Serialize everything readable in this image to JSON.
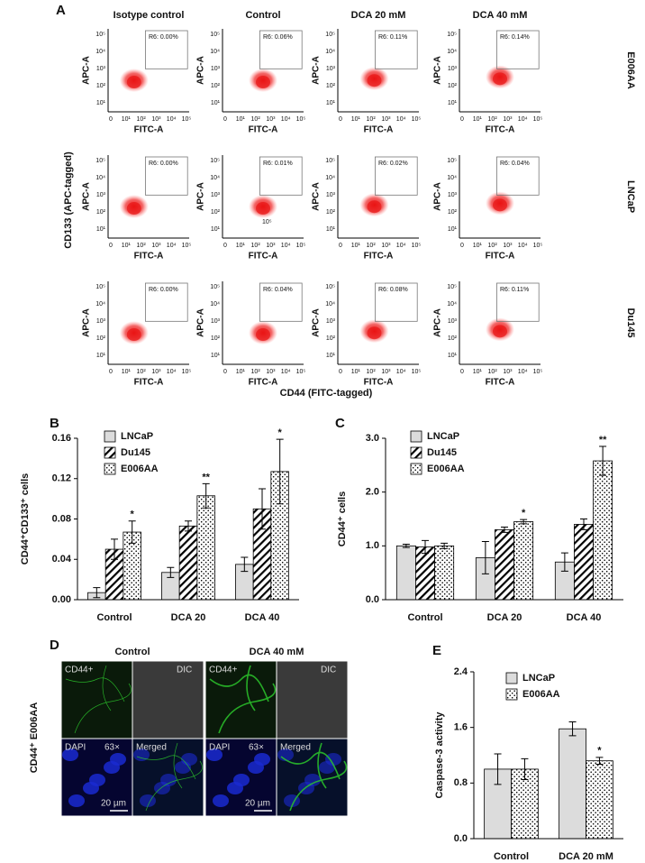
{
  "flow": {
    "label": "A",
    "columns": [
      "Isotype control",
      "Control",
      "DCA 20 mM",
      "DCA 40 mM"
    ],
    "rows": [
      {
        "name": "E006AA",
        "gates": [
          "R6: 0.00%",
          "R6: 0.06%",
          "R6: 0.11%",
          "R6: 0.14%"
        ]
      },
      {
        "name": "LNCaP",
        "gates": [
          "R6: 0.00%",
          "R6: 0.01%",
          "R6: 0.02%",
          "R6: 0.04%"
        ]
      },
      {
        "name": "Du145",
        "gates": [
          "R6: 0.00%",
          "R6: 0.04%",
          "R6: 0.08%",
          "R6: 0.11%"
        ]
      }
    ],
    "y_axis_label": "CD133 (APC-tagged)",
    "x_axis_label": "CD44 (FITC-tagged)",
    "plot_x_label": "FITC-A",
    "plot_y_label": "APC-A",
    "xticks": [
      "0",
      "10¹",
      "10²",
      "10³",
      "10⁴",
      "10⁵"
    ],
    "yticks": [
      "10¹",
      "10²",
      "10³",
      "10⁴",
      "10⁵"
    ],
    "stray_label": "10⁵"
  },
  "chart_data": [
    {
      "type": "bar",
      "panel": "B",
      "ylabel": "CD44⁺CD133⁺ cells",
      "categories": [
        "Control",
        "DCA 20",
        "DCA 40"
      ],
      "series": [
        {
          "name": "LNCaP",
          "pattern": "solid",
          "color": "#dcdcdc",
          "values": [
            0.007,
            0.027,
            0.035
          ],
          "errors": [
            0.005,
            0.005,
            0.007
          ]
        },
        {
          "name": "Du145",
          "pattern": "hatch",
          "color": "#000000",
          "values": [
            0.05,
            0.073,
            0.09
          ],
          "errors": [
            0.01,
            0.005,
            0.02
          ]
        },
        {
          "name": "E006AA",
          "pattern": "dots",
          "color": "#000000",
          "values": [
            0.067,
            0.103,
            0.127
          ],
          "errors": [
            0.011,
            0.012,
            0.032
          ],
          "significance": [
            "*",
            "**",
            "*"
          ]
        }
      ],
      "ylim": [
        0,
        0.16
      ],
      "yticks": [
        {
          "value": 0,
          "label": "0.00"
        },
        {
          "value": 0.04,
          "label": "0.04"
        },
        {
          "value": 0.08,
          "label": "0.08"
        },
        {
          "value": 0.12,
          "label": "0.12"
        },
        {
          "value": 0.16,
          "label": "0.16"
        }
      ]
    },
    {
      "type": "bar",
      "panel": "C",
      "ylabel": "CD44⁺ cells",
      "categories": [
        "Control",
        "DCA 20",
        "DCA 40"
      ],
      "series": [
        {
          "name": "LNCaP",
          "pattern": "solid",
          "color": "#dcdcdc",
          "values": [
            1.0,
            0.78,
            0.7
          ],
          "errors": [
            0.03,
            0.3,
            0.17
          ]
        },
        {
          "name": "Du145",
          "pattern": "hatch",
          "color": "#000000",
          "values": [
            0.98,
            1.3,
            1.4
          ],
          "errors": [
            0.12,
            0.05,
            0.1
          ]
        },
        {
          "name": "E006AA",
          "pattern": "dots",
          "color": "#000000",
          "values": [
            1.0,
            1.45,
            2.58
          ],
          "errors": [
            0.05,
            0.04,
            0.27
          ],
          "significance": [
            null,
            "*",
            "**"
          ]
        }
      ],
      "ylim": [
        0,
        3
      ],
      "yticks": [
        {
          "value": 0,
          "label": "0.0"
        },
        {
          "value": 1,
          "label": "1.0"
        },
        {
          "value": 2,
          "label": "2.0"
        },
        {
          "value": 3,
          "label": "3.0"
        }
      ]
    },
    {
      "type": "bar",
      "panel": "E",
      "ylabel": "Caspase-3 activity",
      "categories": [
        "Control",
        "DCA 20 mM"
      ],
      "series": [
        {
          "name": "LNCaP",
          "pattern": "solid",
          "color": "#dcdcdc",
          "values": [
            1.0,
            1.58
          ],
          "errors": [
            0.22,
            0.1
          ]
        },
        {
          "name": "E006AA",
          "pattern": "dots",
          "color": "#000000",
          "values": [
            1.0,
            1.12
          ],
          "errors": [
            0.15,
            0.05
          ],
          "significance": [
            null,
            "*"
          ]
        }
      ],
      "ylim": [
        0,
        2.4
      ],
      "yticks": [
        {
          "value": 0,
          "label": "0.0"
        },
        {
          "value": 0.8,
          "label": "0.8"
        },
        {
          "value": 1.6,
          "label": "1.6"
        },
        {
          "value": 2.4,
          "label": "2.4"
        }
      ]
    }
  ],
  "microscopy": {
    "label": "D",
    "columns": [
      "Control",
      "DCA 40 mM"
    ],
    "row_label": "CD44⁺ E006AA",
    "quadrants": [
      "CD44+",
      "DIC",
      "DAPI",
      "Merged"
    ],
    "magnification": "63×",
    "scale_bar": "20 µm"
  }
}
